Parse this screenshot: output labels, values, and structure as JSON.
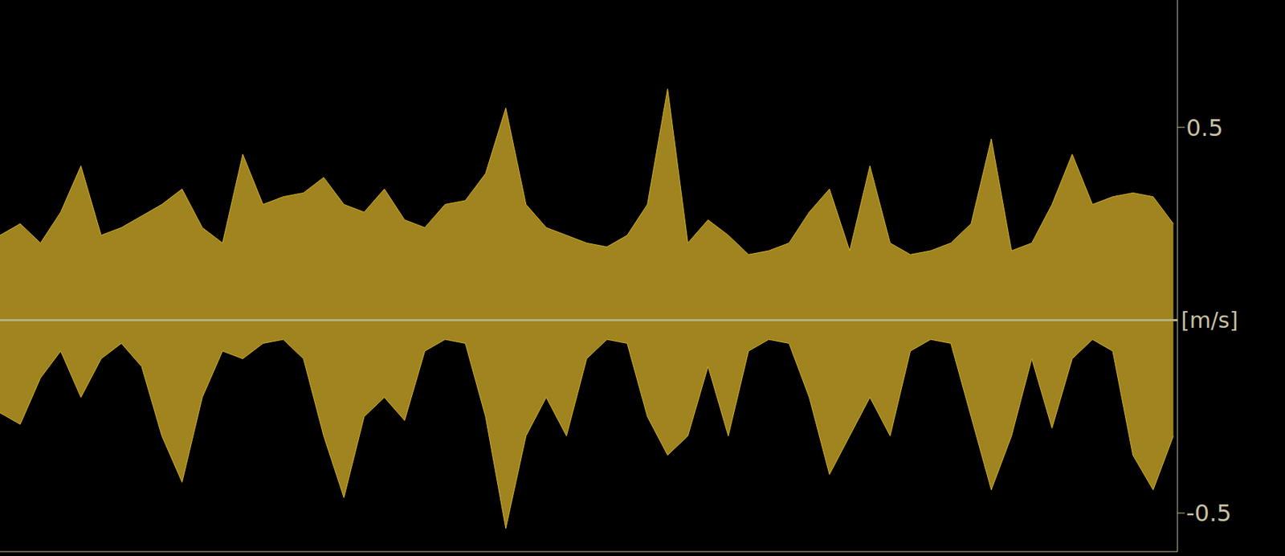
{
  "chart_data": {
    "type": "area",
    "y_label": "[m/s]",
    "x": [
      0,
      25,
      50,
      75,
      100,
      125,
      150,
      175,
      200,
      225,
      250,
      275,
      300,
      325,
      350,
      375,
      400,
      425,
      450,
      475,
      500,
      525,
      550,
      575,
      600,
      625,
      650,
      675,
      700,
      725,
      750,
      775,
      800,
      825,
      850,
      875,
      900,
      925,
      950,
      975,
      1000,
      1025,
      1050,
      1075,
      1100,
      1125,
      1150,
      1175,
      1200,
      1225,
      1250,
      1275,
      1300,
      1325,
      1350,
      1375,
      1400,
      1425,
      1450
    ],
    "series": [
      {
        "color": "#d4b02a",
        "values": [
          0.22,
          0.25,
          0.2,
          0.28,
          0.4,
          0.22,
          0.24,
          0.27,
          0.3,
          0.34,
          0.24,
          0.2,
          0.43,
          0.3,
          0.32,
          0.33,
          0.37,
          0.3,
          0.28,
          0.34,
          0.26,
          0.24,
          0.3,
          0.31,
          0.38,
          0.55,
          0.3,
          0.24,
          0.22,
          0.2,
          0.19,
          0.22,
          0.3,
          0.6,
          0.2,
          0.26,
          0.22,
          0.17,
          0.18,
          0.2,
          0.28,
          0.34,
          0.18,
          0.4,
          0.2,
          0.17,
          0.18,
          0.2,
          0.25,
          0.47,
          0.18,
          0.2,
          0.3,
          0.43,
          0.3,
          0.32,
          0.33,
          0.32,
          0.25
        ]
      },
      {
        "color": "#d4b02a",
        "values": [
          -0.24,
          -0.27,
          -0.15,
          -0.08,
          -0.2,
          -0.1,
          -0.06,
          -0.12,
          -0.3,
          -0.42,
          -0.2,
          -0.08,
          -0.1,
          -0.06,
          -0.05,
          -0.1,
          -0.3,
          -0.46,
          -0.25,
          -0.2,
          -0.26,
          -0.08,
          -0.05,
          -0.06,
          -0.25,
          -0.54,
          -0.3,
          -0.2,
          -0.3,
          -0.1,
          -0.05,
          -0.06,
          -0.25,
          -0.35,
          -0.3,
          -0.12,
          -0.3,
          -0.08,
          -0.05,
          -0.06,
          -0.2,
          -0.4,
          -0.3,
          -0.2,
          -0.3,
          -0.08,
          -0.05,
          -0.06,
          -0.25,
          -0.44,
          -0.3,
          -0.1,
          -0.28,
          -0.1,
          -0.05,
          -0.08,
          -0.35,
          -0.44,
          -0.3
        ]
      }
    ],
    "xlim": [
      0,
      1455
    ],
    "ylim": [
      -0.6,
      0.83
    ],
    "yticks": [
      -0.5,
      0.5
    ],
    "tick_labels": "y",
    "grid": false
  }
}
